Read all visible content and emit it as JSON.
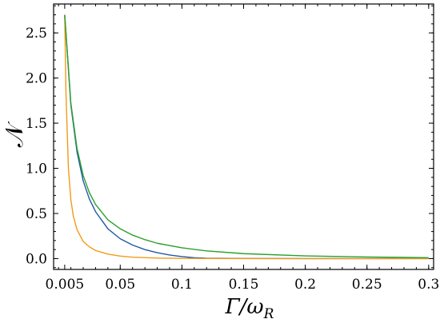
{
  "chart_data": {
    "type": "line",
    "xlabel": "Γ/ω",
    "xlabel_sub": "R",
    "ylabel": "𝒩",
    "xlim": [
      -0.004,
      0.304
    ],
    "ylim": [
      -0.12,
      2.82
    ],
    "xticks": [
      0.005,
      0.05,
      0.1,
      0.15,
      0.2,
      0.25,
      0.3
    ],
    "xtick_labels": [
      "0.005",
      "0.05",
      "0.1",
      "0.15",
      "0.2",
      "0.25",
      "0.3"
    ],
    "yticks": [
      0.0,
      0.5,
      1.0,
      1.5,
      2.0,
      2.5
    ],
    "ytick_labels": [
      "0.0",
      "0.5",
      "1.0",
      "1.5",
      "2.0",
      "2.5"
    ],
    "grid": false,
    "series": [
      {
        "color": "#1f5aa6",
        "x": [
          0.005,
          0.01,
          0.015,
          0.02,
          0.025,
          0.03,
          0.04,
          0.05,
          0.06,
          0.07,
          0.08,
          0.09,
          0.1,
          0.11,
          0.12,
          0.15,
          0.2,
          0.25,
          0.3
        ],
        "y": [
          2.7,
          1.7,
          1.18,
          0.86,
          0.66,
          0.52,
          0.33,
          0.22,
          0.15,
          0.1,
          0.065,
          0.04,
          0.022,
          0.01,
          0.004,
          0.001,
          0.0,
          0.0,
          0.0
        ]
      },
      {
        "color": "#f29b18",
        "x": [
          0.005,
          0.006,
          0.008,
          0.01,
          0.012,
          0.015,
          0.02,
          0.025,
          0.03,
          0.04,
          0.05,
          0.06,
          0.08,
          0.1,
          0.15,
          0.2,
          0.25,
          0.3
        ],
        "y": [
          2.7,
          1.85,
          1.0,
          0.65,
          0.47,
          0.32,
          0.19,
          0.13,
          0.09,
          0.05,
          0.028,
          0.016,
          0.006,
          0.002,
          0.0,
          0.0,
          0.0,
          0.0
        ]
      },
      {
        "color": "#2ca02c",
        "x": [
          0.005,
          0.01,
          0.015,
          0.02,
          0.025,
          0.03,
          0.04,
          0.05,
          0.06,
          0.07,
          0.08,
          0.1,
          0.12,
          0.15,
          0.2,
          0.25,
          0.3
        ],
        "y": [
          2.7,
          1.72,
          1.22,
          0.92,
          0.73,
          0.6,
          0.43,
          0.33,
          0.26,
          0.21,
          0.17,
          0.12,
          0.085,
          0.055,
          0.03,
          0.018,
          0.01
        ]
      }
    ]
  }
}
